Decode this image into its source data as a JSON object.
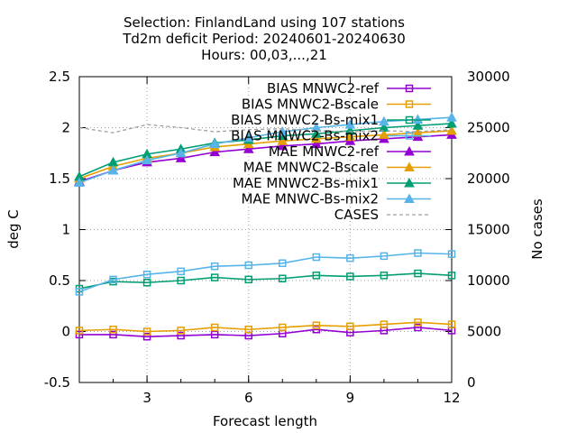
{
  "chart_data": {
    "type": "line",
    "title_lines": [
      "Selection: FinlandLand using   107 stations",
      "Td2m deficit   Period: 20240601-20240630",
      "Hours: 00,03,...,21"
    ],
    "xlabel": "Forecast length",
    "ylabel": "deg C",
    "y2label": "No cases",
    "xlim": [
      1,
      12
    ],
    "ylim": [
      -0.5,
      2.5
    ],
    "y2lim": [
      0,
      30000
    ],
    "x_ticks": [
      "3",
      "6",
      "9",
      "12"
    ],
    "y_ticks": [
      "-0.5",
      "0",
      "0.5",
      "1",
      "1.5",
      "2",
      "2.5"
    ],
    "y2_ticks": [
      "0",
      "5000",
      "10000",
      "15000",
      "20000",
      "25000",
      "30000"
    ],
    "grid": true,
    "legend_position": "top-right",
    "x": [
      1,
      2,
      3,
      4,
      5,
      6,
      7,
      8,
      9,
      10,
      11,
      12
    ],
    "series": [
      {
        "name": "BIAS MNWC2-ref",
        "marker": "square",
        "color": "#9400d3",
        "axis": "y",
        "values": [
          -0.03,
          -0.03,
          -0.05,
          -0.04,
          -0.03,
          -0.04,
          -0.02,
          0.02,
          -0.01,
          0.01,
          0.04,
          0.01
        ]
      },
      {
        "name": "BIAS MNWC2-Bscale",
        "marker": "square",
        "color": "#e69f00",
        "axis": "y",
        "values": [
          0.01,
          0.02,
          0.0,
          0.01,
          0.04,
          0.02,
          0.04,
          0.06,
          0.05,
          0.07,
          0.09,
          0.07
        ]
      },
      {
        "name": "BIAS MNWC2-Bs-mix1",
        "marker": "square",
        "color": "#009e73",
        "axis": "y",
        "values": [
          0.42,
          0.49,
          0.48,
          0.5,
          0.53,
          0.51,
          0.52,
          0.55,
          0.54,
          0.55,
          0.57,
          0.55
        ]
      },
      {
        "name": "BIAS MNWC2-Bs-mix2",
        "marker": "square",
        "color": "#56b4e9",
        "axis": "y",
        "values": [
          0.39,
          0.51,
          0.56,
          0.59,
          0.64,
          0.65,
          0.67,
          0.73,
          0.72,
          0.74,
          0.77,
          0.76
        ]
      },
      {
        "name": "MAE MNWC2-ref",
        "marker": "triangle",
        "color": "#9400d3",
        "axis": "y",
        "values": [
          1.47,
          1.58,
          1.66,
          1.7,
          1.76,
          1.79,
          1.82,
          1.84,
          1.87,
          1.89,
          1.91,
          1.93
        ]
      },
      {
        "name": "MAE MNWC2-Bscale",
        "marker": "triangle",
        "color": "#e69f00",
        "axis": "y",
        "values": [
          1.5,
          1.62,
          1.7,
          1.75,
          1.81,
          1.84,
          1.87,
          1.89,
          1.91,
          1.93,
          1.95,
          1.97
        ]
      },
      {
        "name": "MAE MNWC2-Bs-mix1",
        "marker": "triangle",
        "color": "#009e73",
        "axis": "y",
        "values": [
          1.52,
          1.66,
          1.74,
          1.79,
          1.85,
          1.88,
          1.92,
          1.94,
          1.97,
          2.0,
          2.02,
          2.04
        ]
      },
      {
        "name": "MAE MNWC-Bs-mix2",
        "marker": "triangle",
        "color": "#56b4e9",
        "axis": "y",
        "values": [
          1.46,
          1.58,
          1.68,
          1.75,
          1.84,
          1.9,
          1.96,
          2.0,
          2.03,
          2.06,
          2.08,
          2.1
        ]
      },
      {
        "name": "CASES",
        "marker": "none",
        "color": "#a0a0a0",
        "dashed": true,
        "axis": "y2",
        "values": [
          25000,
          24500,
          25300,
          25000,
          24600,
          24800,
          24900,
          24700,
          24600,
          24700,
          24600,
          24800
        ]
      }
    ]
  }
}
